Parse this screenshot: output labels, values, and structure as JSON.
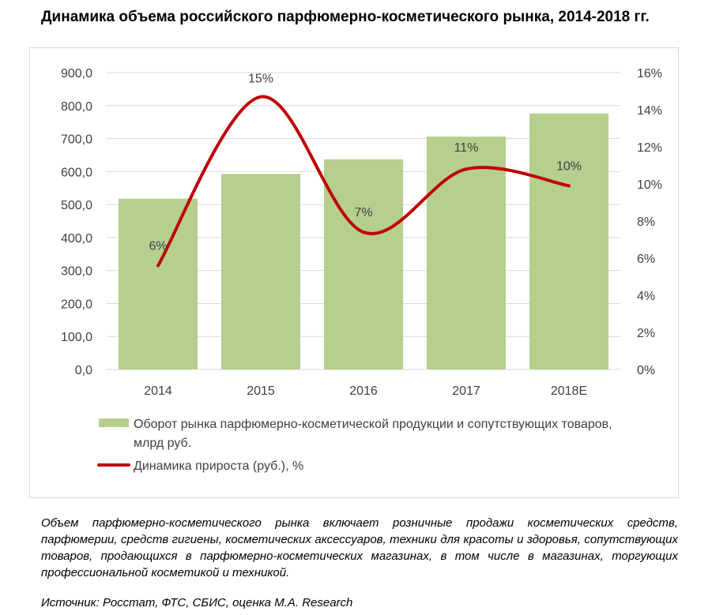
{
  "title": "Динамика объема российского парфюмерно-косметического рынка, 2014-2018 гг.",
  "chart_data": {
    "type": "bar",
    "categories": [
      "2014",
      "2015",
      "2016",
      "2017",
      "2018E"
    ],
    "series": [
      {
        "name": "Оборот рынка парфюмерно-косметической продукции и сопутствующих товаров, млрд руб.",
        "type": "bar",
        "axis": "left",
        "color": "#b5cf8f",
        "values": [
          518,
          593,
          637,
          706,
          776
        ]
      },
      {
        "name": "Динамика прироста (руб.), %",
        "type": "line",
        "axis": "right",
        "color": "#c00000",
        "values": [
          5.6,
          14.7,
          7.4,
          10.8,
          9.9
        ],
        "data_labels": [
          "6%",
          "15%",
          "7%",
          "11%",
          "10%"
        ]
      }
    ],
    "y_left": {
      "range": [
        0,
        900
      ],
      "ticks": [
        0,
        100,
        200,
        300,
        400,
        500,
        600,
        700,
        800,
        900
      ],
      "tick_labels": [
        "0,0",
        "100,0",
        "200,0",
        "300,0",
        "400,0",
        "500,0",
        "600,0",
        "700,0",
        "800,0",
        "900,0"
      ]
    },
    "y_right": {
      "range": [
        0,
        16
      ],
      "ticks": [
        0,
        2,
        4,
        6,
        8,
        10,
        12,
        14,
        16
      ],
      "tick_labels": [
        "0%",
        "2%",
        "4%",
        "6%",
        "8%",
        "10%",
        "12%",
        "14%",
        "16%"
      ]
    },
    "grid": true,
    "legend": "bottom"
  },
  "note": "Объем парфюмерно-косметического рынка включает розничные продажи косметических средств, парфюмерии, средств гигиены, косметических аксессуаров, техники для красоты и здоровья, сопутствующих товаров, продающихся в парфюмерно-косметических магазинах, в том числе в магазинах, торгующих профессиональной косметикой и техникой.",
  "source": "Источник: Росстат, ФТС, СБИС, оценка М.А. Research"
}
